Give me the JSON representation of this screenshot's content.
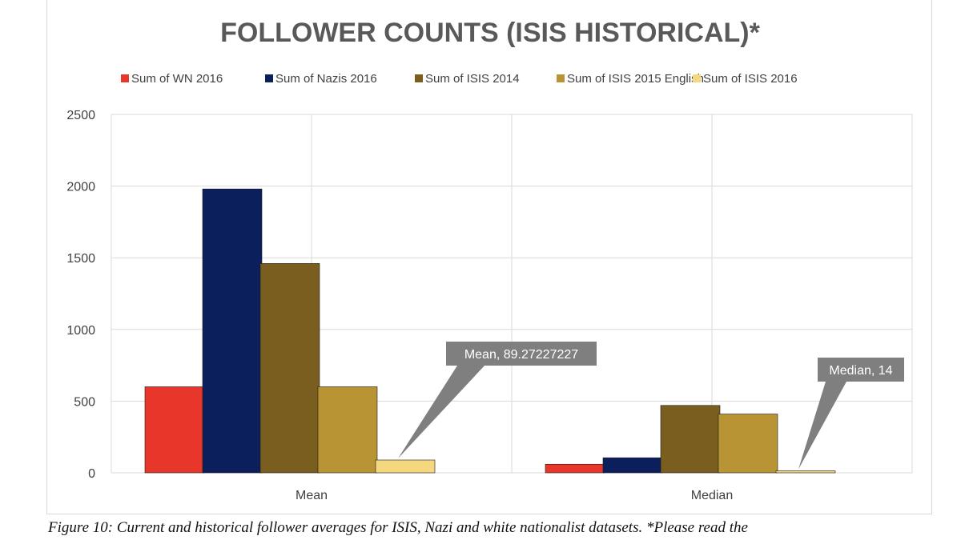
{
  "caption": "Figure 10: Current and historical follower averages for ISIS, Nazi and white nationalist datasets. *Please read the",
  "chart_data": {
    "type": "bar",
    "title": "FOLLOWER COUNTS (ISIS HISTORICAL)*",
    "categories": [
      "Mean",
      "Median"
    ],
    "series": [
      {
        "name": "Sum of WN 2016",
        "color": "#e8372a",
        "values": [
          600,
          60
        ]
      },
      {
        "name": "Sum of Nazis 2016",
        "color": "#0b1f5c",
        "values": [
          1980,
          105
        ]
      },
      {
        "name": "Sum of ISIS 2014",
        "color": "#7a5e20",
        "values": [
          1460,
          470
        ]
      },
      {
        "name": "Sum of ISIS 2015 English",
        "color": "#b89434",
        "values": [
          600,
          410
        ]
      },
      {
        "name": "Sum of ISIS 2016",
        "color": "#f5d77e",
        "values": [
          89.27227227,
          14
        ]
      }
    ],
    "ylim": [
      0,
      2500
    ],
    "yticks": [
      0,
      500,
      1000,
      1500,
      2000,
      2500
    ],
    "grid": true,
    "legend": "top",
    "annotations": [
      {
        "text": "Mean, 89.27227227",
        "category": "Mean",
        "series": "Sum of ISIS 2016"
      },
      {
        "text": "Median, 14",
        "category": "Median",
        "series": "Sum of ISIS 2016"
      }
    ]
  }
}
